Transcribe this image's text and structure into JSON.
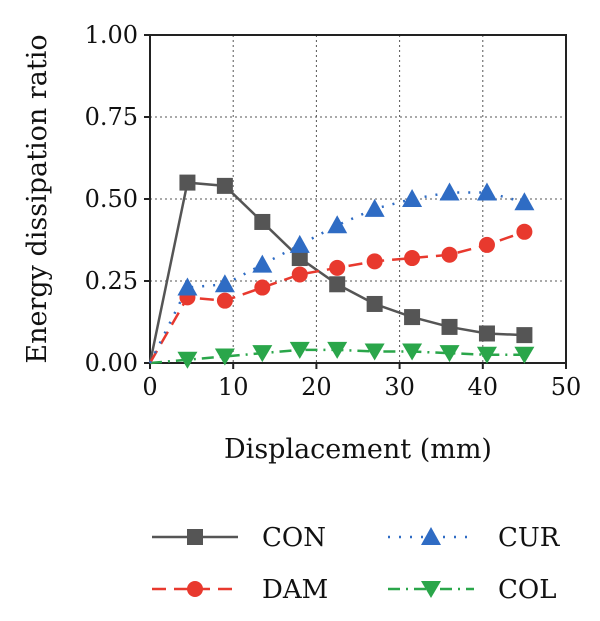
{
  "chart_data": {
    "type": "line",
    "xlabel": "Displacement (mm)",
    "ylabel": "Energy dissipation ratio",
    "xlim": [
      0,
      50
    ],
    "ylim": [
      0,
      1.0
    ],
    "xticks": [
      "0",
      "10",
      "20",
      "30",
      "40",
      "50"
    ],
    "yticks": [
      "0.00",
      "0.25",
      "0.50",
      "0.75",
      "1.00"
    ],
    "grid": true,
    "legend_position": "bottom",
    "series": [
      {
        "name": "CON",
        "color": "#555555",
        "line_style": "solid",
        "marker": "square",
        "x": [
          0,
          4.5,
          9,
          13.5,
          18,
          22.5,
          27,
          31.5,
          36,
          40.5,
          45
        ],
        "y": [
          0.0,
          0.55,
          0.54,
          0.43,
          0.32,
          0.24,
          0.18,
          0.14,
          0.11,
          0.09,
          0.085
        ]
      },
      {
        "name": "CUR",
        "color": "#2f6cc4",
        "line_style": "dotted",
        "marker": "triangle-up",
        "x": [
          0,
          4.5,
          9,
          13.5,
          18,
          22.5,
          27,
          31.5,
          36,
          40.5,
          45
        ],
        "y": [
          0.0,
          0.23,
          0.24,
          0.3,
          0.36,
          0.42,
          0.47,
          0.5,
          0.52,
          0.52,
          0.49
        ]
      },
      {
        "name": "DAM",
        "color": "#e8392e",
        "line_style": "dashed",
        "marker": "circle",
        "x": [
          0,
          4.5,
          9,
          13.5,
          18,
          22.5,
          27,
          31.5,
          36,
          40.5,
          45
        ],
        "y": [
          0.0,
          0.2,
          0.19,
          0.23,
          0.27,
          0.29,
          0.31,
          0.32,
          0.33,
          0.36,
          0.4
        ]
      },
      {
        "name": "COL",
        "color": "#2aa64a",
        "line_style": "dash-dot",
        "marker": "triangle-down",
        "x": [
          0,
          4.5,
          9,
          13.5,
          18,
          22.5,
          27,
          31.5,
          36,
          40.5,
          45
        ],
        "y": [
          0.0,
          0.01,
          0.02,
          0.03,
          0.04,
          0.04,
          0.035,
          0.035,
          0.03,
          0.025,
          0.025
        ]
      }
    ]
  }
}
